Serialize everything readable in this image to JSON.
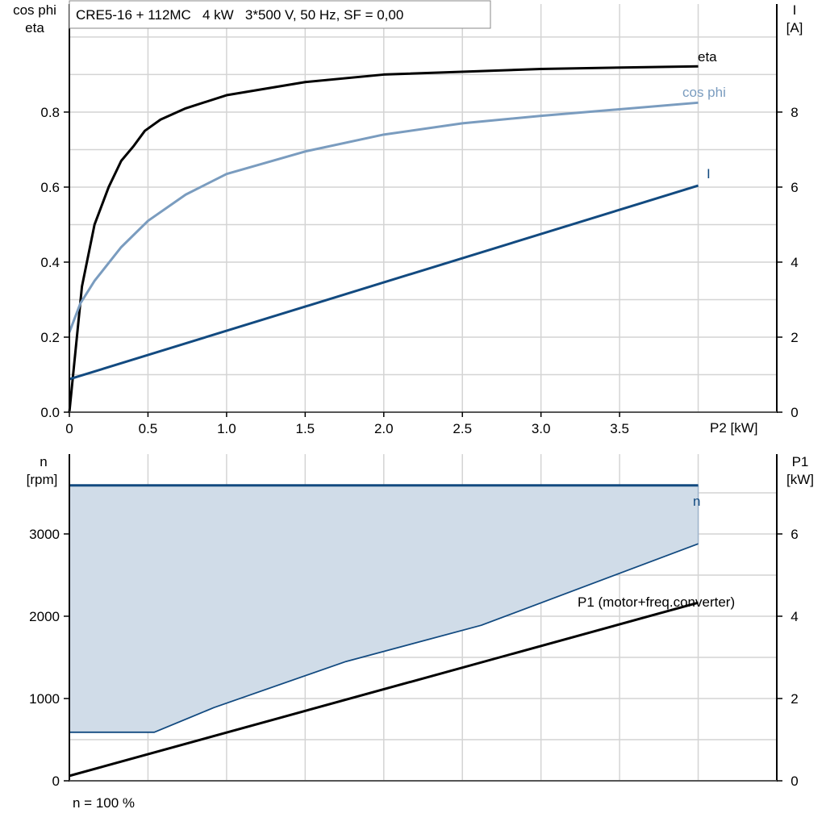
{
  "chart_data": [
    {
      "type": "line",
      "title": "CRE5-16 + 112MC   4 kW   3*500 V, 50 Hz, SF = 0,00",
      "xlabel": "P2 [kW]",
      "ylabel_left": [
        "cos phi",
        "eta"
      ],
      "ylabel_right": [
        "I",
        "[A]"
      ],
      "xlim": [
        0,
        4.5
      ],
      "ylim_left": [
        0,
        1.088
      ],
      "ylim_right": [
        0,
        10.88
      ],
      "x_ticks": [
        "0",
        "0.5",
        "1.0",
        "1.5",
        "2.0",
        "2.5",
        "3.0",
        "3.5"
      ],
      "x_tick_values": [
        0,
        0.5,
        1,
        1.5,
        2,
        2.5,
        3,
        3.5
      ],
      "y_left_ticks": [
        "0.0",
        "0.2",
        "0.4",
        "0.6",
        "0.8"
      ],
      "y_left_tick_values": [
        0,
        0.2,
        0.4,
        0.6,
        0.8
      ],
      "y_right_ticks": [
        "0",
        "2",
        "4",
        "6",
        "8"
      ],
      "y_right_tick_values": [
        0,
        2,
        4,
        6,
        8
      ],
      "grid": true,
      "series": [
        {
          "name": "eta",
          "axis": "left",
          "color": "#000000",
          "x": [
            0,
            0.08,
            0.16,
            0.25,
            0.33,
            0.41,
            0.48,
            0.58,
            0.74,
            1.0,
            1.5,
            2.0,
            3.0,
            4.0
          ],
          "y": [
            0,
            0.335,
            0.5,
            0.6,
            0.67,
            0.71,
            0.75,
            0.78,
            0.81,
            0.845,
            0.88,
            0.9,
            0.915,
            0.922
          ]
        },
        {
          "name": "cos phi",
          "axis": "left",
          "color": "#7a9cbf",
          "x": [
            0,
            0.07,
            0.16,
            0.33,
            0.5,
            0.74,
            1.0,
            1.5,
            2.0,
            2.5,
            3.0,
            4.0
          ],
          "y": [
            0.213,
            0.29,
            0.35,
            0.44,
            0.51,
            0.58,
            0.635,
            0.695,
            0.74,
            0.77,
            0.79,
            0.825
          ]
        },
        {
          "name": "I",
          "axis": "right",
          "color": "#124a80",
          "x": [
            0,
            4.0
          ],
          "y": [
            0.88,
            6.04
          ]
        }
      ]
    },
    {
      "type": "line",
      "xlim": [
        0,
        4.5
      ],
      "ylabel_left": [
        "n",
        "[rpm]"
      ],
      "ylabel_right": [
        "P1",
        "[kW]"
      ],
      "ylim_left": [
        0,
        3970
      ],
      "ylim_right": [
        0,
        7.94
      ],
      "y_left_ticks": [
        "0",
        "1000",
        "2000",
        "3000"
      ],
      "y_left_tick_values": [
        0,
        1000,
        2000,
        3000
      ],
      "y_right_ticks": [
        "0",
        "2",
        "4",
        "6"
      ],
      "y_right_tick_values": [
        0,
        2,
        4,
        6
      ],
      "grid": true,
      "footnote": "n = 100 %",
      "fill_color": "#d0dce8",
      "series": [
        {
          "name": "n",
          "axis": "left",
          "color": "#124a80",
          "x": [
            0,
            4.0
          ],
          "y": [
            3590,
            3590
          ]
        },
        {
          "axis": "left",
          "color": "#124a80",
          "x": [
            0,
            0.54,
            0.92,
            1.76,
            2.62,
            4.0
          ],
          "y": [
            590,
            590,
            890,
            1450,
            1890,
            2880
          ]
        },
        {
          "name": "P1 (motor+freq.converter)",
          "axis": "right",
          "color": "#000000",
          "x": [
            0,
            4.0
          ],
          "y": [
            0.12,
            4.33
          ]
        }
      ]
    }
  ]
}
